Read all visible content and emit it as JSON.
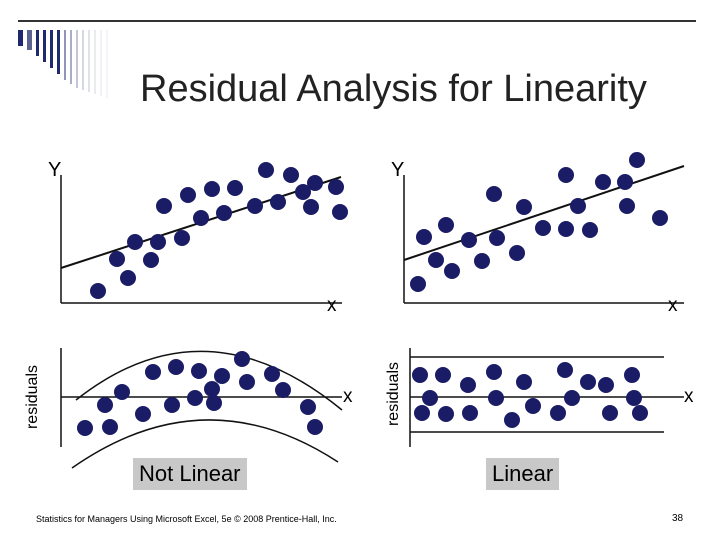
{
  "slide": {
    "title": "Residual Analysis for Linearity",
    "footer": "Statistics for Managers Using Microsoft Excel, 5e © 2008 Prentice-Hall, Inc.",
    "page_number": "38",
    "colors": {
      "dot": "#1a1c66",
      "rule": "#333333",
      "title": "#222222",
      "verdict_bg": "#c8c8c8"
    }
  },
  "panels": {
    "top_left": {
      "y_label": "Y",
      "x_label": "x"
    },
    "top_right": {
      "y_label": "Y",
      "x_label": "x"
    },
    "bottom_left": {
      "y_label": "residuals",
      "x_label": "x",
      "verdict": "Not Linear"
    },
    "bottom_right": {
      "y_label": "residuals",
      "x_label": "x",
      "verdict": "Linear"
    }
  }
}
